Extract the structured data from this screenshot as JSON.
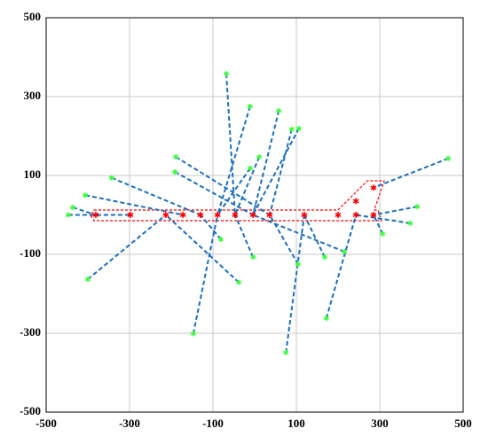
{
  "chart_data": {
    "type": "scatter",
    "xlim": [
      -500,
      500
    ],
    "ylim": [
      -500,
      500
    ],
    "xticks": [
      -500,
      -300,
      -100,
      100,
      300,
      500
    ],
    "yticks": [
      -500,
      -300,
      -100,
      100,
      300,
      500
    ],
    "grid": true,
    "link_color": "#1a6fc0",
    "target_color": "#3cff3c",
    "robot_color": "#ff0000",
    "robots": {
      "x": [
        -381,
        -298,
        -213,
        -172,
        -130,
        -89,
        -47,
        -4,
        36,
        119,
        200,
        243,
        285,
        243,
        285
      ],
      "y": [
        0,
        0,
        0,
        0,
        0,
        0,
        0,
        0,
        0,
        0,
        0,
        0,
        0,
        35,
        69
      ]
    },
    "links": [
      {
        "x": [
          -68,
          -47
        ],
        "y": [
          358,
          0
        ]
      },
      {
        "x": [
          -11,
          -89
        ],
        "y": [
          275,
          0
        ]
      },
      {
        "x": [
          58,
          -4
        ],
        "y": [
          264,
          0
        ]
      },
      {
        "x": [
          89,
          36
        ],
        "y": [
          217,
          0
        ]
      },
      {
        "x": [
          106,
          -4
        ],
        "y": [
          219,
          0
        ]
      },
      {
        "x": [
          11,
          -47
        ],
        "y": [
          147,
          0
        ]
      },
      {
        "x": [
          -11,
          -89
        ],
        "y": [
          118,
          0
        ]
      },
      {
        "x": [
          -189,
          36
        ],
        "y": [
          147,
          0
        ]
      },
      {
        "x": [
          -191,
          -4
        ],
        "y": [
          109,
          0
        ]
      },
      {
        "x": [
          -343,
          -130
        ],
        "y": [
          94,
          0
        ]
      },
      {
        "x": [
          -406,
          -172
        ],
        "y": [
          50,
          0
        ]
      },
      {
        "x": [
          -436,
          -381
        ],
        "y": [
          19,
          0
        ]
      },
      {
        "x": [
          -447,
          -298
        ],
        "y": [
          0,
          0
        ]
      },
      {
        "x": [
          -400,
          -213
        ],
        "y": [
          -163,
          0
        ]
      },
      {
        "x": [
          -147,
          -89
        ],
        "y": [
          -301,
          0
        ]
      },
      {
        "x": [
          -38,
          -213
        ],
        "y": [
          -171,
          0
        ]
      },
      {
        "x": [
          -81,
          -130
        ],
        "y": [
          -62,
          0
        ]
      },
      {
        "x": [
          -4,
          -47
        ],
        "y": [
          -107,
          0
        ]
      },
      {
        "x": [
          104,
          36
        ],
        "y": [
          -125,
          0
        ]
      },
      {
        "x": [
          168,
          119
        ],
        "y": [
          -107,
          0
        ]
      },
      {
        "x": [
          215,
          -4
        ],
        "y": [
          -93,
          0
        ]
      },
      {
        "x": [
          75,
          119
        ],
        "y": [
          -349,
          0
        ]
      },
      {
        "x": [
          172,
          243
        ],
        "y": [
          -262,
          0
        ]
      },
      {
        "x": [
          307,
          285
        ],
        "y": [
          -48,
          0
        ]
      },
      {
        "x": [
          373,
          243
        ],
        "y": [
          -21,
          0
        ]
      },
      {
        "x": [
          390,
          285
        ],
        "y": [
          21,
          0
        ]
      },
      {
        "x": [
          464,
          285
        ],
        "y": [
          143,
          69
        ]
      }
    ]
  }
}
